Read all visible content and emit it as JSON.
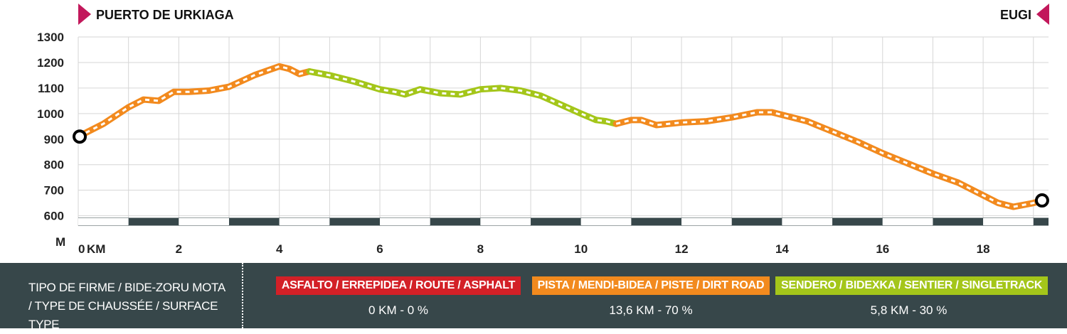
{
  "header": {
    "start_label": "PUERTO DE URKIAGA",
    "end_label": "EUGI",
    "marker_color": "#c2185b"
  },
  "legend": {
    "title_line1": "TIPO DE FIRME / BIDE-ZORU MOTA",
    "title_line2": "/ TYPE DE CHAUSSÉE / SURFACE TYPE",
    "surfaces": [
      {
        "label": "ASFALTO / ERREPIDEA / ROUTE / ASPHALT",
        "value": "0 KM - 0 %",
        "color": "#d32027"
      },
      {
        "label": "PISTA / MENDI-BIDEA / PISTE / DIRT ROAD",
        "value": "13,6 KM - 70 %",
        "color": "#f28a1e"
      },
      {
        "label": "SENDERO  / BIDEXKA / SENTIER / SINGLETRACK",
        "value": "5,8 KM - 30 %",
        "color": "#a4c61a"
      }
    ]
  },
  "chart_data": {
    "type": "line",
    "xlabel": "KM",
    "ylabel": "M",
    "xlim": [
      0,
      19.3
    ],
    "ylim": [
      560,
      1300
    ],
    "x_ticks": [
      "0",
      "2",
      "4",
      "6",
      "8",
      "10",
      "12",
      "14",
      "16",
      "18"
    ],
    "x_tick_values": [
      0,
      2,
      4,
      6,
      8,
      10,
      12,
      14,
      16,
      18
    ],
    "y_ticks": [
      "600",
      "700",
      "800",
      "900",
      "1000",
      "1100",
      "1200",
      "1300"
    ],
    "y_tick_values": [
      600,
      700,
      800,
      900,
      1000,
      1100,
      1200,
      1300
    ],
    "grid": true,
    "series": [
      {
        "x": [
          0,
          0.5,
          1.0,
          1.3,
          1.6,
          1.9,
          2.2,
          2.6,
          3.0,
          3.5,
          4.0,
          4.2,
          4.4,
          4.6,
          5.0,
          5.5,
          6.0,
          6.3,
          6.5,
          6.8,
          7.2,
          7.6,
          8.0,
          8.4,
          8.8,
          9.2,
          9.6,
          10.0,
          10.3,
          10.5,
          10.7,
          11.0,
          11.2,
          11.5,
          12.0,
          12.5,
          13.0,
          13.5,
          13.8,
          14.5,
          15.0,
          15.5,
          16.0,
          16.5,
          17.0,
          17.5,
          18.0,
          18.3,
          18.6,
          19.0,
          19.2
        ],
        "y": [
          910,
          960,
          1025,
          1055,
          1050,
          1085,
          1085,
          1090,
          1105,
          1150,
          1185,
          1175,
          1155,
          1165,
          1150,
          1125,
          1095,
          1085,
          1075,
          1095,
          1080,
          1075,
          1095,
          1100,
          1090,
          1070,
          1035,
          1000,
          975,
          970,
          960,
          975,
          975,
          955,
          965,
          970,
          985,
          1005,
          1005,
          970,
          930,
          890,
          845,
          805,
          765,
          730,
          680,
          650,
          635,
          650,
          660
        ],
        "surface": [
          "dirt",
          "dirt",
          "dirt",
          "dirt",
          "dirt",
          "dirt",
          "dirt",
          "dirt",
          "dirt",
          "dirt",
          "dirt",
          "dirt",
          "dirt",
          "singletrack",
          "singletrack",
          "singletrack",
          "singletrack",
          "singletrack",
          "singletrack",
          "singletrack",
          "singletrack",
          "singletrack",
          "singletrack",
          "singletrack",
          "singletrack",
          "singletrack",
          "singletrack",
          "singletrack",
          "singletrack",
          "singletrack",
          "dirt",
          "dirt",
          "dirt",
          "dirt",
          "dirt",
          "dirt",
          "dirt",
          "dirt",
          "dirt",
          "dirt",
          "dirt",
          "dirt",
          "dirt",
          "dirt",
          "dirt",
          "dirt",
          "dirt",
          "dirt",
          "dirt",
          "dirt",
          "dirt"
        ],
        "colors": {
          "dirt": "#f28a1e",
          "singletrack": "#a4c61a"
        }
      }
    ]
  }
}
